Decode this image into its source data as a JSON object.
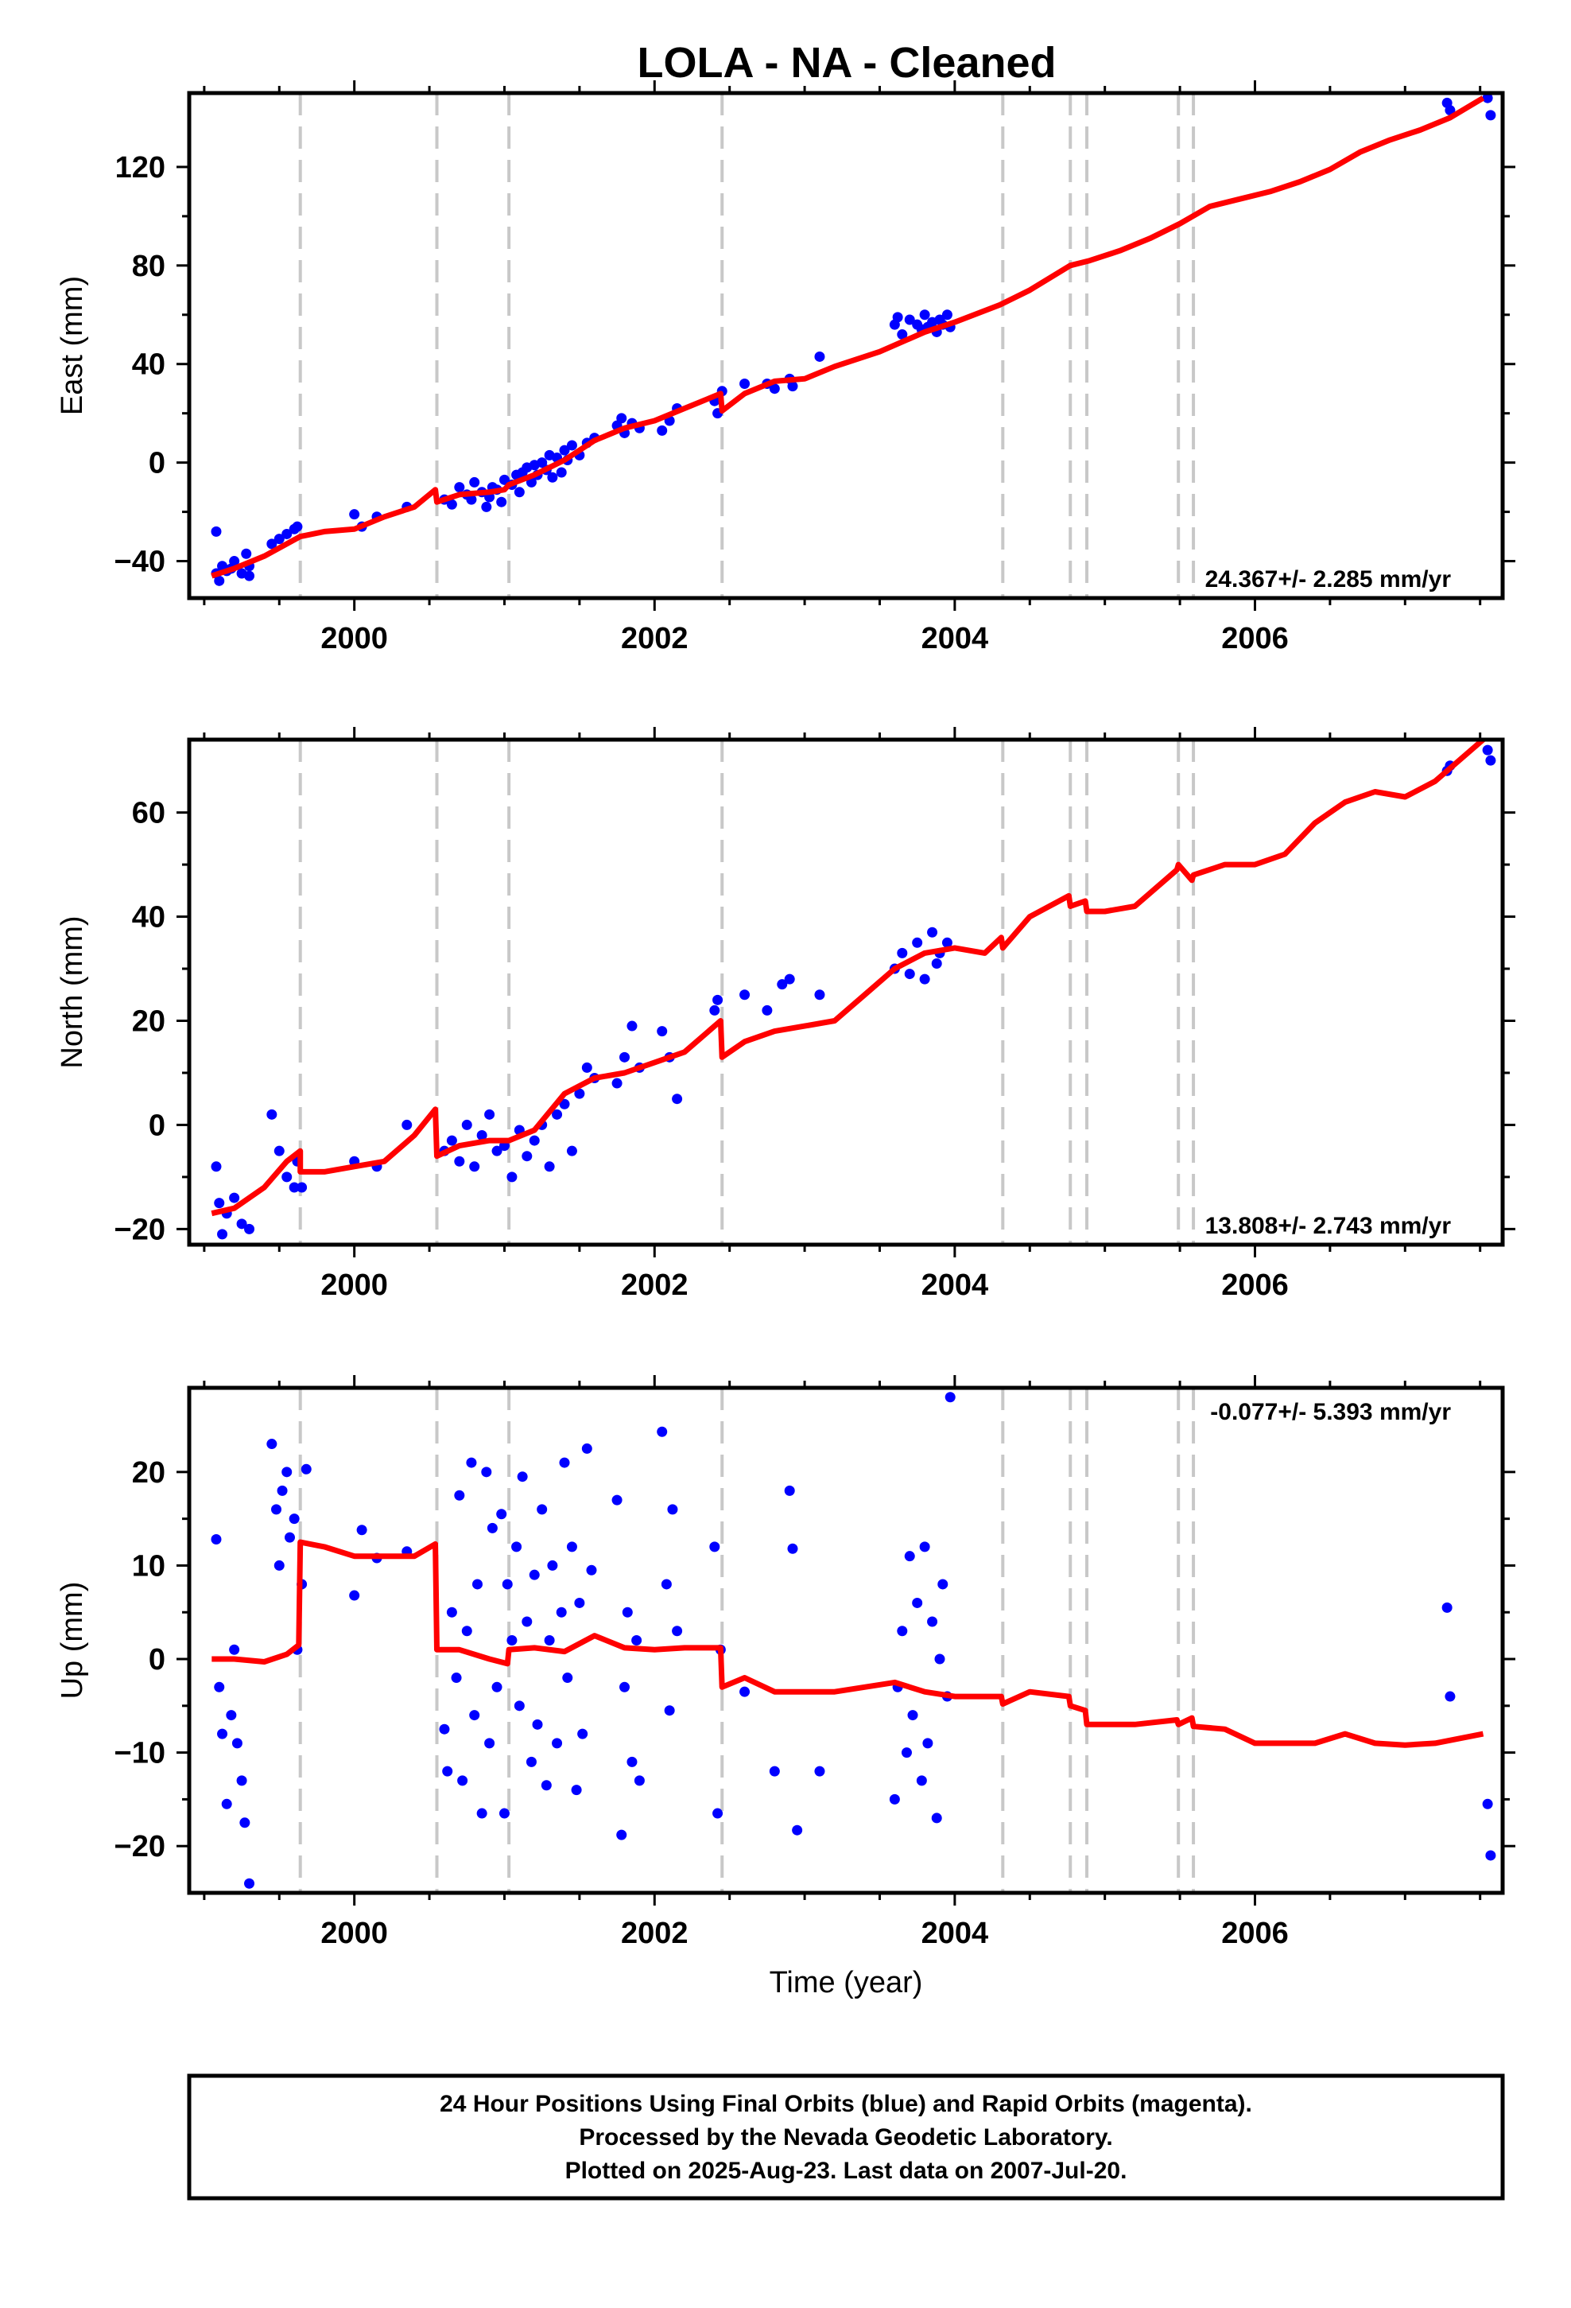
{
  "title": "LOLA  - NA - Cleaned",
  "colors": {
    "points": "#0000ff",
    "model": "#ff0000",
    "breaks": "#c8c8c8",
    "frame": "#000000"
  },
  "footer": {
    "line1": "24 Hour Positions Using Final Orbits (blue) and Rapid Orbits (magenta).",
    "line2": "Processed by the Nevada Geodetic Laboratory.",
    "line3": "Plotted on 2025-Aug-23. Last data on 2007-Jul-20."
  },
  "chart_data": [
    {
      "type": "scatter",
      "ylabel": "East (mm)",
      "xlabel": "",
      "xlim": [
        1998.9,
        2007.65
      ],
      "ylim": [
        -55,
        150
      ],
      "xticks": [
        2000,
        2002,
        2004,
        2006
      ],
      "xtick_labels": [
        "2000",
        "2002",
        "2004",
        "2006"
      ],
      "yticks": [
        -40,
        0,
        40,
        80,
        120
      ],
      "ytick_labels": [
        "−40",
        "0",
        "40",
        "80",
        "120"
      ],
      "grid": false,
      "rate_label": "24.367+/- 2.285 mm/yr",
      "rate_position": "bottom-right",
      "breaks": [
        1999.64,
        2000.55,
        2001.03,
        2002.45,
        2004.32,
        2004.77,
        2004.88,
        2005.49,
        2005.59
      ],
      "model": {
        "name": "",
        "x": [
          1999.05,
          1999.2,
          1999.4,
          1999.64,
          1999.8,
          2000.0,
          2000.2,
          2000.4,
          2000.54,
          2000.55,
          2000.7,
          2000.9,
          2001.0,
          2001.03,
          2001.2,
          2001.4,
          2001.6,
          2001.8,
          2002.0,
          2002.2,
          2002.44,
          2002.45,
          2002.6,
          2002.8,
          2003.0,
          2003.2,
          2003.5,
          2003.8,
          2004.0,
          2004.3,
          2004.5,
          2004.77,
          2004.9,
          2005.1,
          2005.3,
          2005.5,
          2005.7,
          2005.9,
          2006.1,
          2006.3,
          2006.5,
          2006.7,
          2006.9,
          2007.1,
          2007.3,
          2007.52
        ],
        "y": [
          -46,
          -43,
          -38,
          -30,
          -28,
          -27,
          -22,
          -18,
          -11,
          -16,
          -13,
          -12,
          -11,
          -9,
          -5,
          1,
          9,
          14,
          17,
          22,
          28,
          21,
          28,
          33,
          34,
          39,
          45,
          53,
          57,
          64,
          70,
          80,
          82,
          86,
          91,
          97,
          104,
          107,
          110,
          114,
          119,
          126,
          131,
          135,
          140,
          148
        ]
      },
      "points": {
        "x": [
          1999.08,
          1999.08,
          1999.1,
          1999.12,
          1999.15,
          1999.18,
          1999.2,
          1999.25,
          1999.28,
          1999.3,
          1999.3,
          1999.45,
          1999.5,
          1999.55,
          1999.6,
          1999.62,
          2000.0,
          2000.05,
          2000.15,
          2000.35,
          2000.6,
          2000.65,
          2000.7,
          2000.75,
          2000.78,
          2000.8,
          2000.85,
          2000.88,
          2000.9,
          2000.92,
          2000.95,
          2000.98,
          2001.0,
          2001.05,
          2001.08,
          2001.1,
          2001.12,
          2001.15,
          2001.18,
          2001.2,
          2001.22,
          2001.25,
          2001.28,
          2001.3,
          2001.32,
          2001.35,
          2001.38,
          2001.4,
          2001.42,
          2001.45,
          2001.5,
          2001.55,
          2001.6,
          2001.75,
          2001.78,
          2001.8,
          2001.85,
          2001.9,
          2002.05,
          2002.1,
          2002.15,
          2002.4,
          2002.42,
          2002.45,
          2002.6,
          2002.75,
          2002.8,
          2002.9,
          2002.92,
          2003.1,
          2003.6,
          2003.62,
          2003.65,
          2003.7,
          2003.75,
          2003.78,
          2003.8,
          2003.82,
          2003.85,
          2003.88,
          2003.9,
          2003.92,
          2003.95,
          2003.97,
          2007.28,
          2007.3,
          2007.55,
          2007.57
        ],
        "y": [
          -45,
          -28,
          -48,
          -42,
          -44,
          -43,
          -40,
          -45,
          -37,
          -46,
          -42,
          -33,
          -31,
          -29,
          -27,
          -26,
          -21,
          -26,
          -22,
          -18,
          -15,
          -17,
          -10,
          -13,
          -15,
          -8,
          -12,
          -18,
          -14,
          -10,
          -11,
          -16,
          -7,
          -9,
          -5,
          -12,
          -4,
          -2,
          -8,
          -1,
          -5,
          0,
          -3,
          3,
          -6,
          2,
          -4,
          5,
          1,
          7,
          3,
          8,
          10,
          15,
          18,
          12,
          16,
          14,
          13,
          17,
          22,
          25,
          20,
          29,
          32,
          32,
          30,
          34,
          31,
          43,
          56,
          59,
          52,
          58,
          56,
          54,
          60,
          55,
          57,
          53,
          58,
          56,
          60,
          55,
          146,
          143,
          148,
          141
        ]
      }
    },
    {
      "type": "scatter",
      "ylabel": "North (mm)",
      "xlabel": "",
      "xlim": [
        1998.9,
        2007.65
      ],
      "ylim": [
        -23,
        74
      ],
      "xticks": [
        2000,
        2002,
        2004,
        2006
      ],
      "xtick_labels": [
        "2000",
        "2002",
        "2004",
        "2006"
      ],
      "yticks": [
        -20,
        0,
        20,
        40,
        60
      ],
      "ytick_labels": [
        "−20",
        "0",
        "20",
        "40",
        "60"
      ],
      "grid": false,
      "rate_label": "13.808+/- 2.743 mm/yr",
      "rate_position": "bottom-right",
      "breaks": [
        1999.64,
        2000.55,
        2001.03,
        2002.45,
        2004.32,
        2004.77,
        2004.88,
        2005.49,
        2005.59
      ],
      "model": {
        "name": "",
        "x": [
          1999.05,
          1999.2,
          1999.4,
          1999.55,
          1999.64,
          1999.64,
          1999.8,
          2000.0,
          2000.2,
          2000.4,
          2000.54,
          2000.55,
          2000.7,
          2000.9,
          2001.0,
          2001.03,
          2001.2,
          2001.4,
          2001.6,
          2001.8,
          2002.0,
          2002.2,
          2002.44,
          2002.45,
          2002.6,
          2002.8,
          2003.0,
          2003.2,
          2003.4,
          2003.6,
          2003.8,
          2004.0,
          2004.2,
          2004.31,
          2004.32,
          2004.5,
          2004.76,
          2004.77,
          2004.87,
          2004.88,
          2005.0,
          2005.2,
          2005.48,
          2005.49,
          2005.58,
          2005.59,
          2005.8,
          2006.0,
          2006.2,
          2006.4,
          2006.6,
          2006.8,
          2007.0,
          2007.2,
          2007.52
        ],
        "y": [
          -17,
          -16,
          -12,
          -7,
          -5,
          -9,
          -9,
          -8,
          -7,
          -2,
          3,
          -6,
          -4,
          -3,
          -3,
          -3,
          -1,
          6,
          9,
          10,
          12,
          14,
          20,
          13,
          16,
          18,
          19,
          20,
          25,
          30,
          33,
          34,
          33,
          36,
          34,
          40,
          44,
          42,
          43,
          41,
          41,
          42,
          49,
          50,
          47,
          48,
          50,
          50,
          52,
          58,
          62,
          64,
          63,
          66,
          74
        ]
      },
      "points": {
        "x": [
          1999.08,
          1999.1,
          1999.12,
          1999.15,
          1999.2,
          1999.25,
          1999.3,
          1999.45,
          1999.5,
          1999.55,
          1999.6,
          1999.62,
          1999.65,
          2000.0,
          2000.15,
          2000.35,
          2000.6,
          2000.65,
          2000.7,
          2000.75,
          2000.8,
          2000.85,
          2000.9,
          2000.95,
          2001.0,
          2001.05,
          2001.1,
          2001.15,
          2001.2,
          2001.25,
          2001.3,
          2001.35,
          2001.4,
          2001.45,
          2001.5,
          2001.55,
          2001.6,
          2001.75,
          2001.8,
          2001.85,
          2001.9,
          2002.05,
          2002.1,
          2002.15,
          2002.4,
          2002.42,
          2002.6,
          2002.75,
          2002.85,
          2002.9,
          2003.1,
          2003.6,
          2003.65,
          2003.7,
          2003.75,
          2003.8,
          2003.85,
          2003.88,
          2003.9,
          2003.95,
          2007.28,
          2007.3,
          2007.55,
          2007.57
        ],
        "y": [
          -8,
          -15,
          -21,
          -17,
          -14,
          -19,
          -20,
          2,
          -5,
          -10,
          -12,
          -7,
          -12,
          -7,
          -8,
          0,
          -5,
          -3,
          -7,
          0,
          -8,
          -2,
          2,
          -5,
          -4,
          -10,
          -1,
          -6,
          -3,
          0,
          -8,
          2,
          4,
          -5,
          6,
          11,
          9,
          8,
          13,
          19,
          11,
          18,
          13,
          5,
          22,
          24,
          25,
          22,
          27,
          28,
          25,
          30,
          33,
          29,
          35,
          28,
          37,
          31,
          33,
          35,
          68,
          69,
          72,
          70
        ]
      }
    },
    {
      "type": "scatter",
      "ylabel": "Up (mm)",
      "xlabel": "Time (year)",
      "xlim": [
        1998.9,
        2007.65
      ],
      "ylim": [
        -25,
        29
      ],
      "xticks": [
        2000,
        2002,
        2004,
        2006
      ],
      "xtick_labels": [
        "2000",
        "2002",
        "2004",
        "2006"
      ],
      "yticks": [
        -20,
        -10,
        0,
        10,
        20
      ],
      "ytick_labels": [
        "−20",
        "−10",
        "0",
        "10",
        "20"
      ],
      "grid": false,
      "rate_label": "-0.077+/- 5.393 mm/yr",
      "rate_position": "top-right",
      "breaks": [
        1999.64,
        2000.55,
        2001.03,
        2002.45,
        2004.32,
        2004.77,
        2004.88,
        2005.49,
        2005.59
      ],
      "model": {
        "name": "",
        "x": [
          1999.05,
          1999.2,
          1999.4,
          1999.55,
          1999.63,
          1999.64,
          1999.8,
          2000.0,
          2000.2,
          2000.4,
          2000.54,
          2000.55,
          2000.7,
          2000.9,
          2001.02,
          2001.03,
          2001.2,
          2001.4,
          2001.6,
          2001.8,
          2002.0,
          2002.2,
          2002.44,
          2002.45,
          2002.6,
          2002.8,
          2003.0,
          2003.2,
          2003.4,
          2003.6,
          2003.8,
          2004.0,
          2004.31,
          2004.32,
          2004.5,
          2004.76,
          2004.77,
          2004.87,
          2004.88,
          2005.0,
          2005.2,
          2005.48,
          2005.49,
          2005.58,
          2005.59,
          2005.8,
          2006.0,
          2006.2,
          2006.4,
          2006.6,
          2006.8,
          2007.0,
          2007.2,
          2007.52
        ],
        "y": [
          0,
          0,
          -0.3,
          0.5,
          1.5,
          12.5,
          12,
          11,
          11,
          11,
          12.3,
          1,
          1,
          0,
          -0.5,
          1,
          1.2,
          0.8,
          2.5,
          1.2,
          1,
          1.2,
          1.2,
          -3,
          -2,
          -3.5,
          -3.5,
          -3.5,
          -3,
          -2.5,
          -3.5,
          -4,
          -4,
          -4.8,
          -3.5,
          -4,
          -5,
          -5.5,
          -7,
          -7,
          -7,
          -6.5,
          -7,
          -6.3,
          -7.2,
          -7.5,
          -9,
          -9,
          -9,
          -8,
          -9,
          -9.2,
          -9,
          -8
        ]
      },
      "points": {
        "x": [
          1999.08,
          1999.1,
          1999.12,
          1999.15,
          1999.18,
          1999.2,
          1999.22,
          1999.25,
          1999.27,
          1999.3,
          1999.45,
          1999.48,
          1999.5,
          1999.52,
          1999.55,
          1999.57,
          1999.6,
          1999.62,
          1999.65,
          1999.68,
          2000.0,
          2000.05,
          2000.15,
          2000.35,
          2000.6,
          2000.62,
          2000.65,
          2000.68,
          2000.7,
          2000.72,
          2000.75,
          2000.78,
          2000.8,
          2000.82,
          2000.85,
          2000.88,
          2000.9,
          2000.92,
          2000.95,
          2000.98,
          2001.0,
          2001.02,
          2001.05,
          2001.08,
          2001.1,
          2001.12,
          2001.15,
          2001.18,
          2001.2,
          2001.22,
          2001.25,
          2001.28,
          2001.3,
          2001.32,
          2001.35,
          2001.38,
          2001.4,
          2001.42,
          2001.45,
          2001.48,
          2001.5,
          2001.52,
          2001.55,
          2001.58,
          2001.75,
          2001.78,
          2001.8,
          2001.82,
          2001.85,
          2001.88,
          2001.9,
          2002.05,
          2002.08,
          2002.1,
          2002.12,
          2002.15,
          2002.4,
          2002.42,
          2002.44,
          2002.6,
          2002.8,
          2002.9,
          2002.92,
          2002.95,
          2003.1,
          2003.6,
          2003.62,
          2003.65,
          2003.68,
          2003.7,
          2003.72,
          2003.75,
          2003.78,
          2003.8,
          2003.82,
          2003.85,
          2003.88,
          2003.9,
          2003.92,
          2003.95,
          2003.97,
          2007.28,
          2007.3,
          2007.55,
          2007.57
        ],
        "y": [
          12.8,
          -3,
          -8,
          -15.5,
          -6,
          1,
          -9,
          -13,
          -17.5,
          -24,
          23,
          16,
          10,
          18,
          20,
          13,
          15,
          1,
          8,
          20.3,
          6.8,
          13.8,
          10.8,
          11.5,
          -7.5,
          -12,
          5,
          -2,
          17.5,
          -13,
          3,
          21,
          -6,
          8,
          -16.5,
          20,
          -9,
          14,
          -3,
          15.5,
          -16.5,
          8,
          2,
          12,
          -5,
          19.5,
          4,
          -11,
          9,
          -7,
          16,
          -13.5,
          2,
          10,
          -9,
          5,
          21,
          -2,
          12,
          -14,
          6,
          -8,
          22.5,
          9.5,
          17,
          -18.8,
          -3,
          5,
          -11,
          2,
          -13,
          24.3,
          8,
          -5.5,
          16,
          3,
          12,
          -16.5,
          1,
          -3.5,
          -12,
          18,
          11.8,
          -18.3,
          -12,
          -15,
          -3,
          3,
          -10,
          11,
          -6,
          6,
          -13,
          12,
          -9,
          4,
          -17,
          0,
          8,
          -4,
          28,
          5.5,
          -4,
          -15.5,
          -21
        ]
      }
    }
  ]
}
